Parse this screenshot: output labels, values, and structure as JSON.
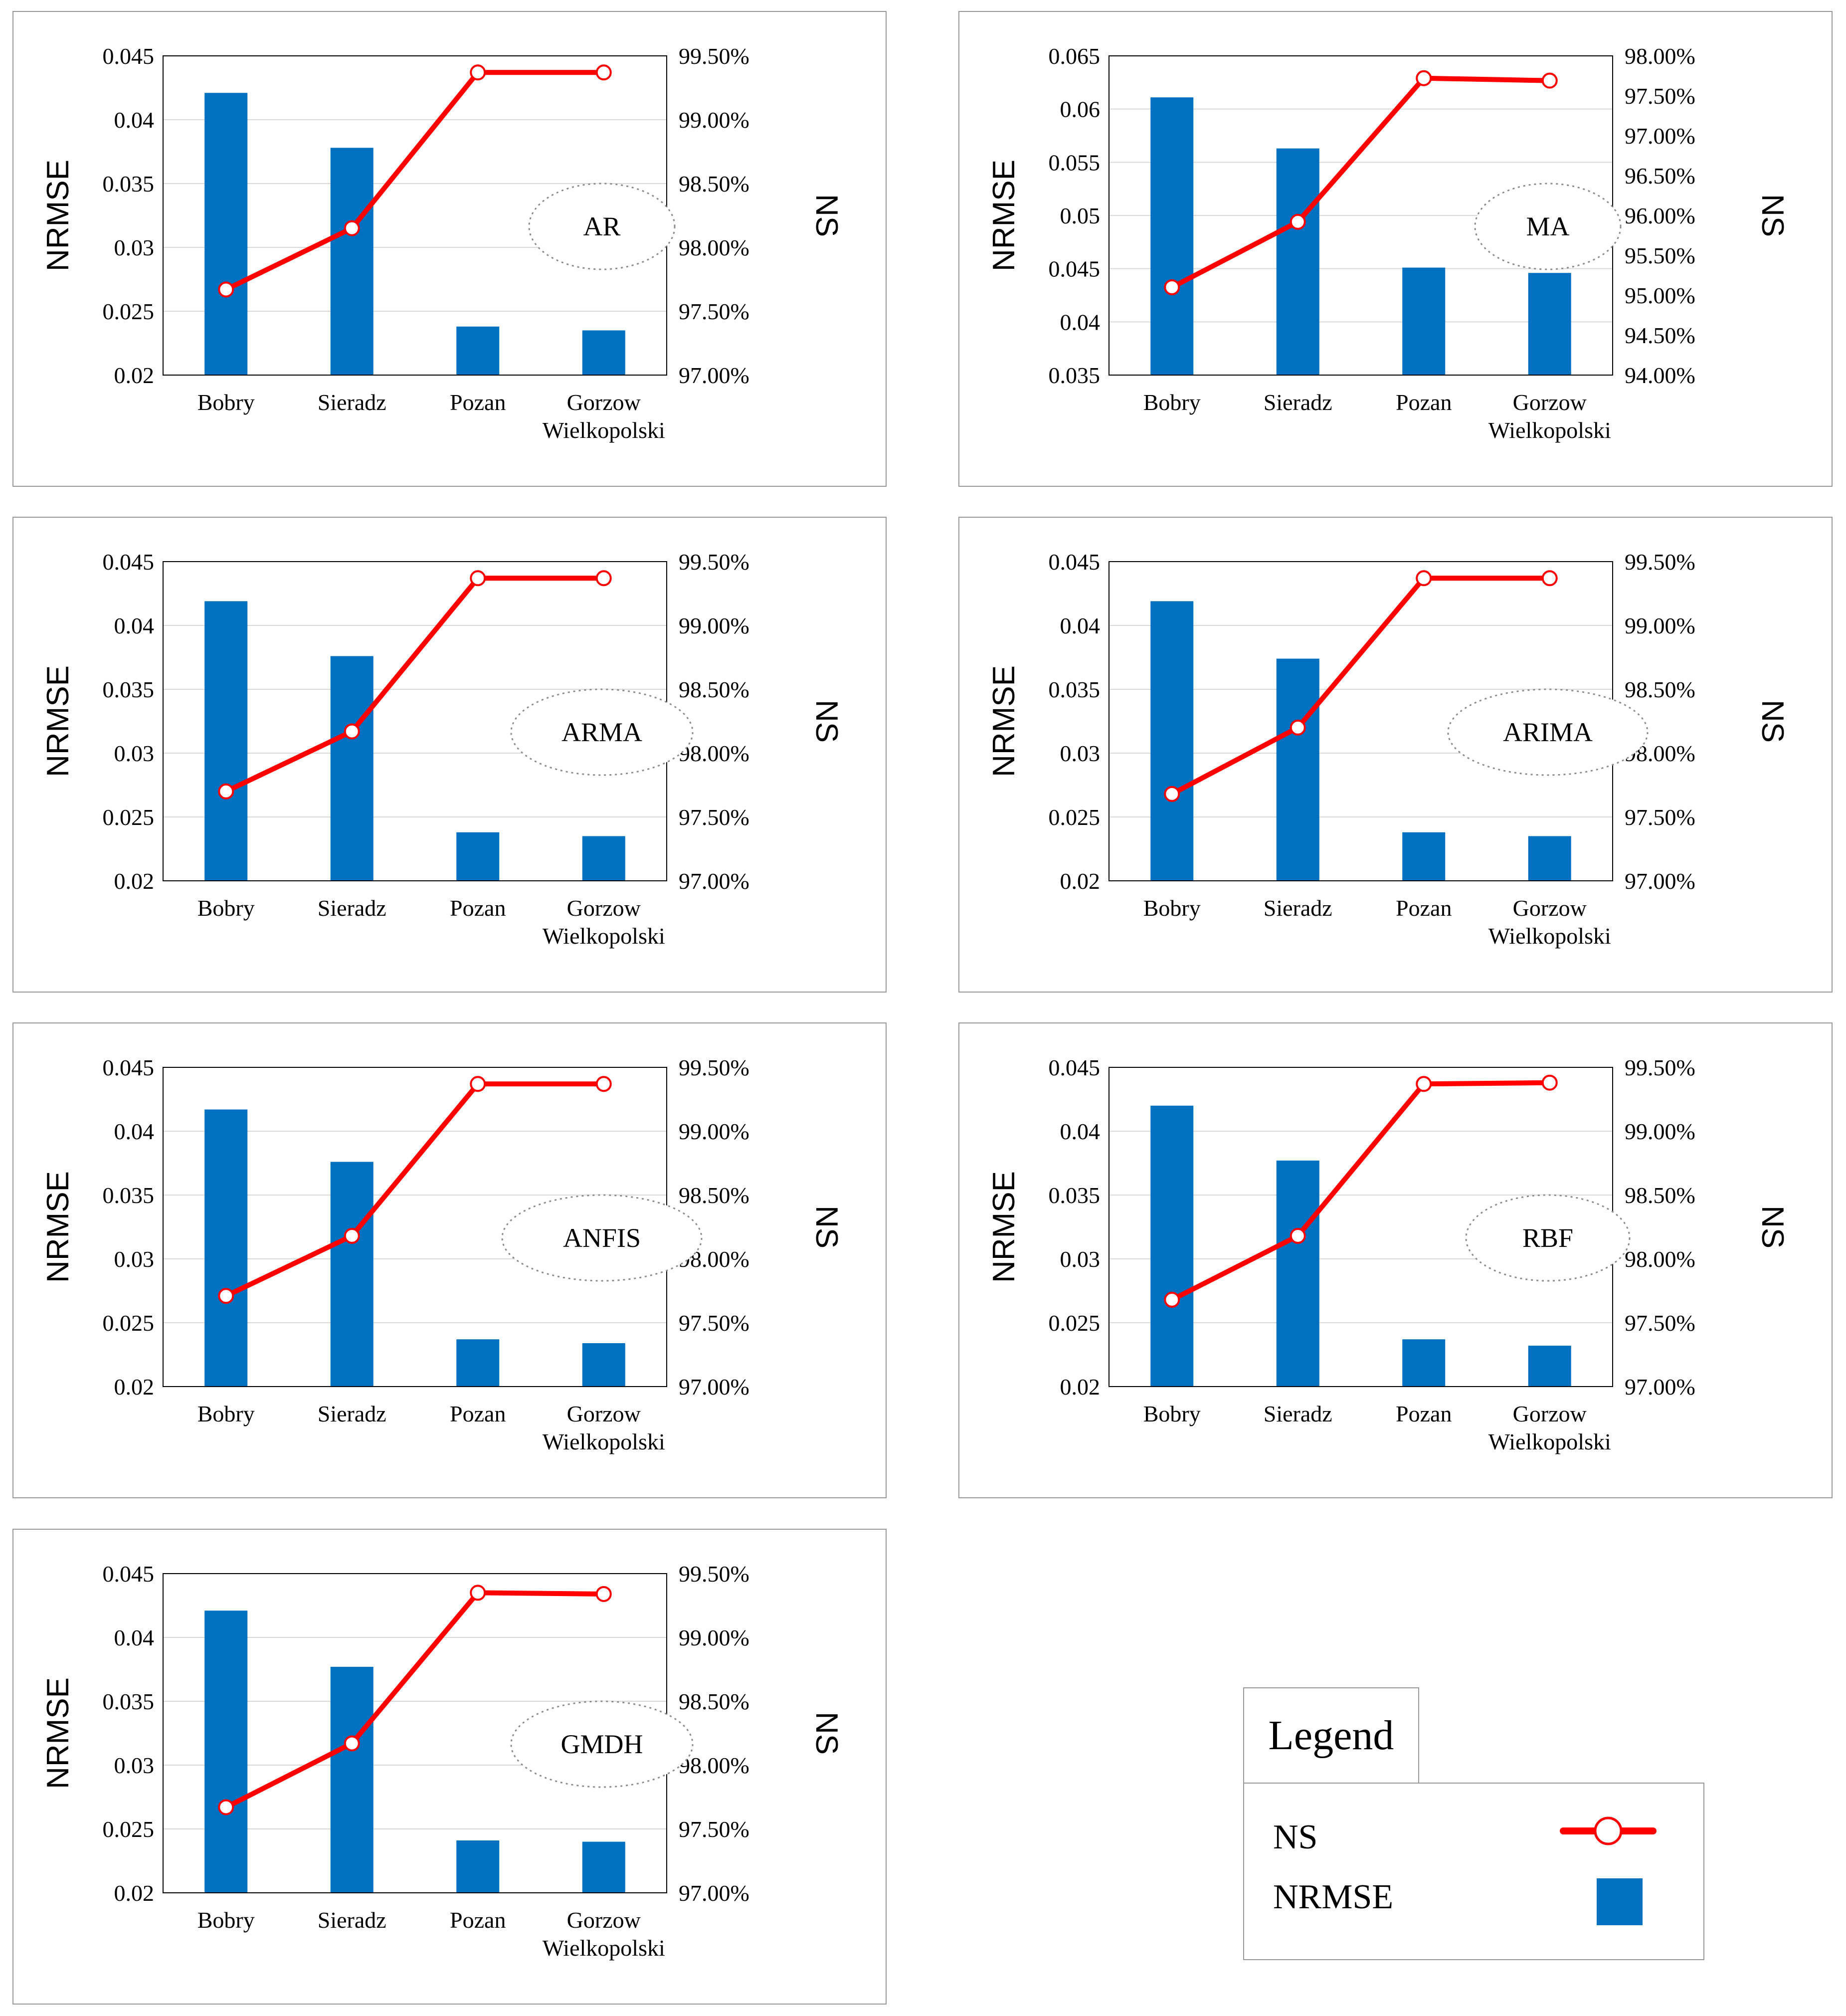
{
  "colors": {
    "bar": "#0070C0",
    "line": "#FF0000",
    "marker_fill": "#FFFFFF",
    "grid": "#D9D9D9"
  },
  "chart_data": [
    {
      "type": "bar+line",
      "model": "AR",
      "categories": [
        [
          "Bobry"
        ],
        [
          "Sieradz"
        ],
        [
          "Pozan"
        ],
        [
          "Gorzow",
          "Wielkopolski"
        ]
      ],
      "ylabel_left": "NRMSE",
      "ylabel_right": "NS",
      "ylim_left": [
        0.02,
        0.045
      ],
      "ylim_right": [
        0.97,
        0.995
      ],
      "yticks_left": [
        "0.045",
        "0.04",
        "0.035",
        "0.03",
        "0.025",
        "0.02"
      ],
      "yticks_right": [
        "99.50%",
        "99.00%",
        "98.50%",
        "98.00%",
        "97.50%",
        "97.00%"
      ],
      "series": [
        {
          "name": "NRMSE",
          "axis": "left",
          "kind": "bar",
          "values": [
            0.0421,
            0.0378,
            0.0238,
            0.0235
          ]
        },
        {
          "name": "NS",
          "axis": "right",
          "kind": "line",
          "values": [
            0.9767,
            0.9815,
            0.9937,
            0.9937
          ]
        }
      ]
    },
    {
      "type": "bar+line",
      "model": "MA",
      "categories": [
        [
          "Bobry"
        ],
        [
          "Sieradz"
        ],
        [
          "Pozan"
        ],
        [
          "Gorzow",
          "Wielkopolski"
        ]
      ],
      "ylabel_left": "NRMSE",
      "ylabel_right": "NS",
      "ylim_left": [
        0.035,
        0.065
      ],
      "ylim_right": [
        0.94,
        0.98
      ],
      "yticks_left": [
        "0.065",
        "0.06",
        "0.055",
        "0.05",
        "0.045",
        "0.04",
        "0.035"
      ],
      "yticks_right": [
        "98.00%",
        "97.50%",
        "97.00%",
        "96.50%",
        "96.00%",
        "95.50%",
        "95.00%",
        "94.50%",
        "94.00%"
      ],
      "series": [
        {
          "name": "NRMSE",
          "axis": "left",
          "kind": "bar",
          "values": [
            0.0611,
            0.0563,
            0.0451,
            0.0446
          ]
        },
        {
          "name": "NS",
          "axis": "right",
          "kind": "line",
          "values": [
            0.951,
            0.9592,
            0.9772,
            0.9769
          ]
        }
      ]
    },
    {
      "type": "bar+line",
      "model": "ARMA",
      "categories": [
        [
          "Bobry"
        ],
        [
          "Sieradz"
        ],
        [
          "Pozan"
        ],
        [
          "Gorzow",
          "Wielkopolski"
        ]
      ],
      "ylabel_left": "NRMSE",
      "ylabel_right": "NS",
      "ylim_left": [
        0.02,
        0.045
      ],
      "ylim_right": [
        0.97,
        0.995
      ],
      "yticks_left": [
        "0.045",
        "0.04",
        "0.035",
        "0.03",
        "0.025",
        "0.02"
      ],
      "yticks_right": [
        "99.50%",
        "99.00%",
        "98.50%",
        "98.00%",
        "97.50%",
        "97.00%"
      ],
      "series": [
        {
          "name": "NRMSE",
          "axis": "left",
          "kind": "bar",
          "values": [
            0.0419,
            0.0376,
            0.0238,
            0.0235
          ]
        },
        {
          "name": "NS",
          "axis": "right",
          "kind": "line",
          "values": [
            0.977,
            0.9817,
            0.9937,
            0.9937
          ]
        }
      ]
    },
    {
      "type": "bar+line",
      "model": "ARIMA",
      "categories": [
        [
          "Bobry"
        ],
        [
          "Sieradz"
        ],
        [
          "Pozan"
        ],
        [
          "Gorzow",
          "Wielkopolski"
        ]
      ],
      "ylabel_left": "NRMSE",
      "ylabel_right": "NS",
      "ylim_left": [
        0.02,
        0.045
      ],
      "ylim_right": [
        0.97,
        0.995
      ],
      "yticks_left": [
        "0.045",
        "0.04",
        "0.035",
        "0.03",
        "0.025",
        "0.02"
      ],
      "yticks_right": [
        "99.50%",
        "99.00%",
        "98.50%",
        "98.00%",
        "97.50%",
        "97.00%"
      ],
      "series": [
        {
          "name": "NRMSE",
          "axis": "left",
          "kind": "bar",
          "values": [
            0.0419,
            0.0374,
            0.0238,
            0.0235
          ]
        },
        {
          "name": "NS",
          "axis": "right",
          "kind": "line",
          "values": [
            0.9768,
            0.982,
            0.9937,
            0.9937
          ]
        }
      ]
    },
    {
      "type": "bar+line",
      "model": "ANFIS",
      "categories": [
        [
          "Bobry"
        ],
        [
          "Sieradz"
        ],
        [
          "Pozan"
        ],
        [
          "Gorzow",
          "Wielkopolski"
        ]
      ],
      "ylabel_left": "NRMSE",
      "ylabel_right": "NS",
      "ylim_left": [
        0.02,
        0.045
      ],
      "ylim_right": [
        0.97,
        0.995
      ],
      "yticks_left": [
        "0.045",
        "0.04",
        "0.035",
        "0.03",
        "0.025",
        "0.02"
      ],
      "yticks_right": [
        "99.50%",
        "99.00%",
        "98.50%",
        "98.00%",
        "97.50%",
        "97.00%"
      ],
      "series": [
        {
          "name": "NRMSE",
          "axis": "left",
          "kind": "bar",
          "values": [
            0.0417,
            0.0376,
            0.0237,
            0.0234
          ]
        },
        {
          "name": "NS",
          "axis": "right",
          "kind": "line",
          "values": [
            0.9771,
            0.9818,
            0.9937,
            0.9937
          ]
        }
      ]
    },
    {
      "type": "bar+line",
      "model": "RBF",
      "categories": [
        [
          "Bobry"
        ],
        [
          "Sieradz"
        ],
        [
          "Pozan"
        ],
        [
          "Gorzow",
          "Wielkopolski"
        ]
      ],
      "ylabel_left": "NRMSE",
      "ylabel_right": "NS",
      "ylim_left": [
        0.02,
        0.045
      ],
      "ylim_right": [
        0.97,
        0.995
      ],
      "yticks_left": [
        "0.045",
        "0.04",
        "0.035",
        "0.03",
        "0.025",
        "0.02"
      ],
      "yticks_right": [
        "99.50%",
        "99.00%",
        "98.50%",
        "98.00%",
        "97.50%",
        "97.00%"
      ],
      "series": [
        {
          "name": "NRMSE",
          "axis": "left",
          "kind": "bar",
          "values": [
            0.042,
            0.0377,
            0.0237,
            0.0232
          ]
        },
        {
          "name": "NS",
          "axis": "right",
          "kind": "line",
          "values": [
            0.9768,
            0.9818,
            0.9937,
            0.9938
          ]
        }
      ]
    },
    {
      "type": "bar+line",
      "model": "GMDH",
      "categories": [
        [
          "Bobry"
        ],
        [
          "Sieradz"
        ],
        [
          "Pozan"
        ],
        [
          "Gorzow",
          "Wielkopolski"
        ]
      ],
      "ylabel_left": "NRMSE",
      "ylabel_right": "NS",
      "ylim_left": [
        0.02,
        0.045
      ],
      "ylim_right": [
        0.97,
        0.995
      ],
      "yticks_left": [
        "0.045",
        "0.04",
        "0.035",
        "0.03",
        "0.025",
        "0.02"
      ],
      "yticks_right": [
        "99.50%",
        "99.00%",
        "98.50%",
        "98.00%",
        "97.50%",
        "97.00%"
      ],
      "series": [
        {
          "name": "NRMSE",
          "axis": "left",
          "kind": "bar",
          "values": [
            0.0421,
            0.0377,
            0.0241,
            0.024
          ]
        },
        {
          "name": "NS",
          "axis": "right",
          "kind": "line",
          "values": [
            0.9767,
            0.9817,
            0.9935,
            0.9934
          ]
        }
      ]
    }
  ],
  "legend": {
    "title": "Legend",
    "items": [
      {
        "label": "NS",
        "symbol": "line-marker"
      },
      {
        "label": "NRMSE",
        "symbol": "bar"
      }
    ]
  }
}
